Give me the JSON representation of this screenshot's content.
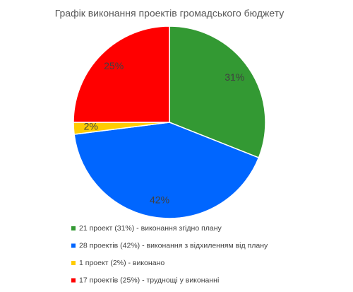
{
  "chart_data": {
    "type": "pie",
    "title": "Графік виконання проектів громадського бюджету",
    "categories": [
      "21 проект (31%) - виконання згідно плану",
      "28 проектів (42%) - виконання з відхиленням від плану",
      "1 проект (2%) - виконано",
      "17 проектів (25%) - труднощі у виконанні"
    ],
    "values": [
      31,
      42,
      2,
      25
    ],
    "value_labels": [
      "31%",
      "42%",
      "2%",
      "25%"
    ],
    "colors": [
      "#339933",
      "#0066ff",
      "#ffcc00",
      "#ff0000"
    ],
    "legend": "bottom"
  }
}
